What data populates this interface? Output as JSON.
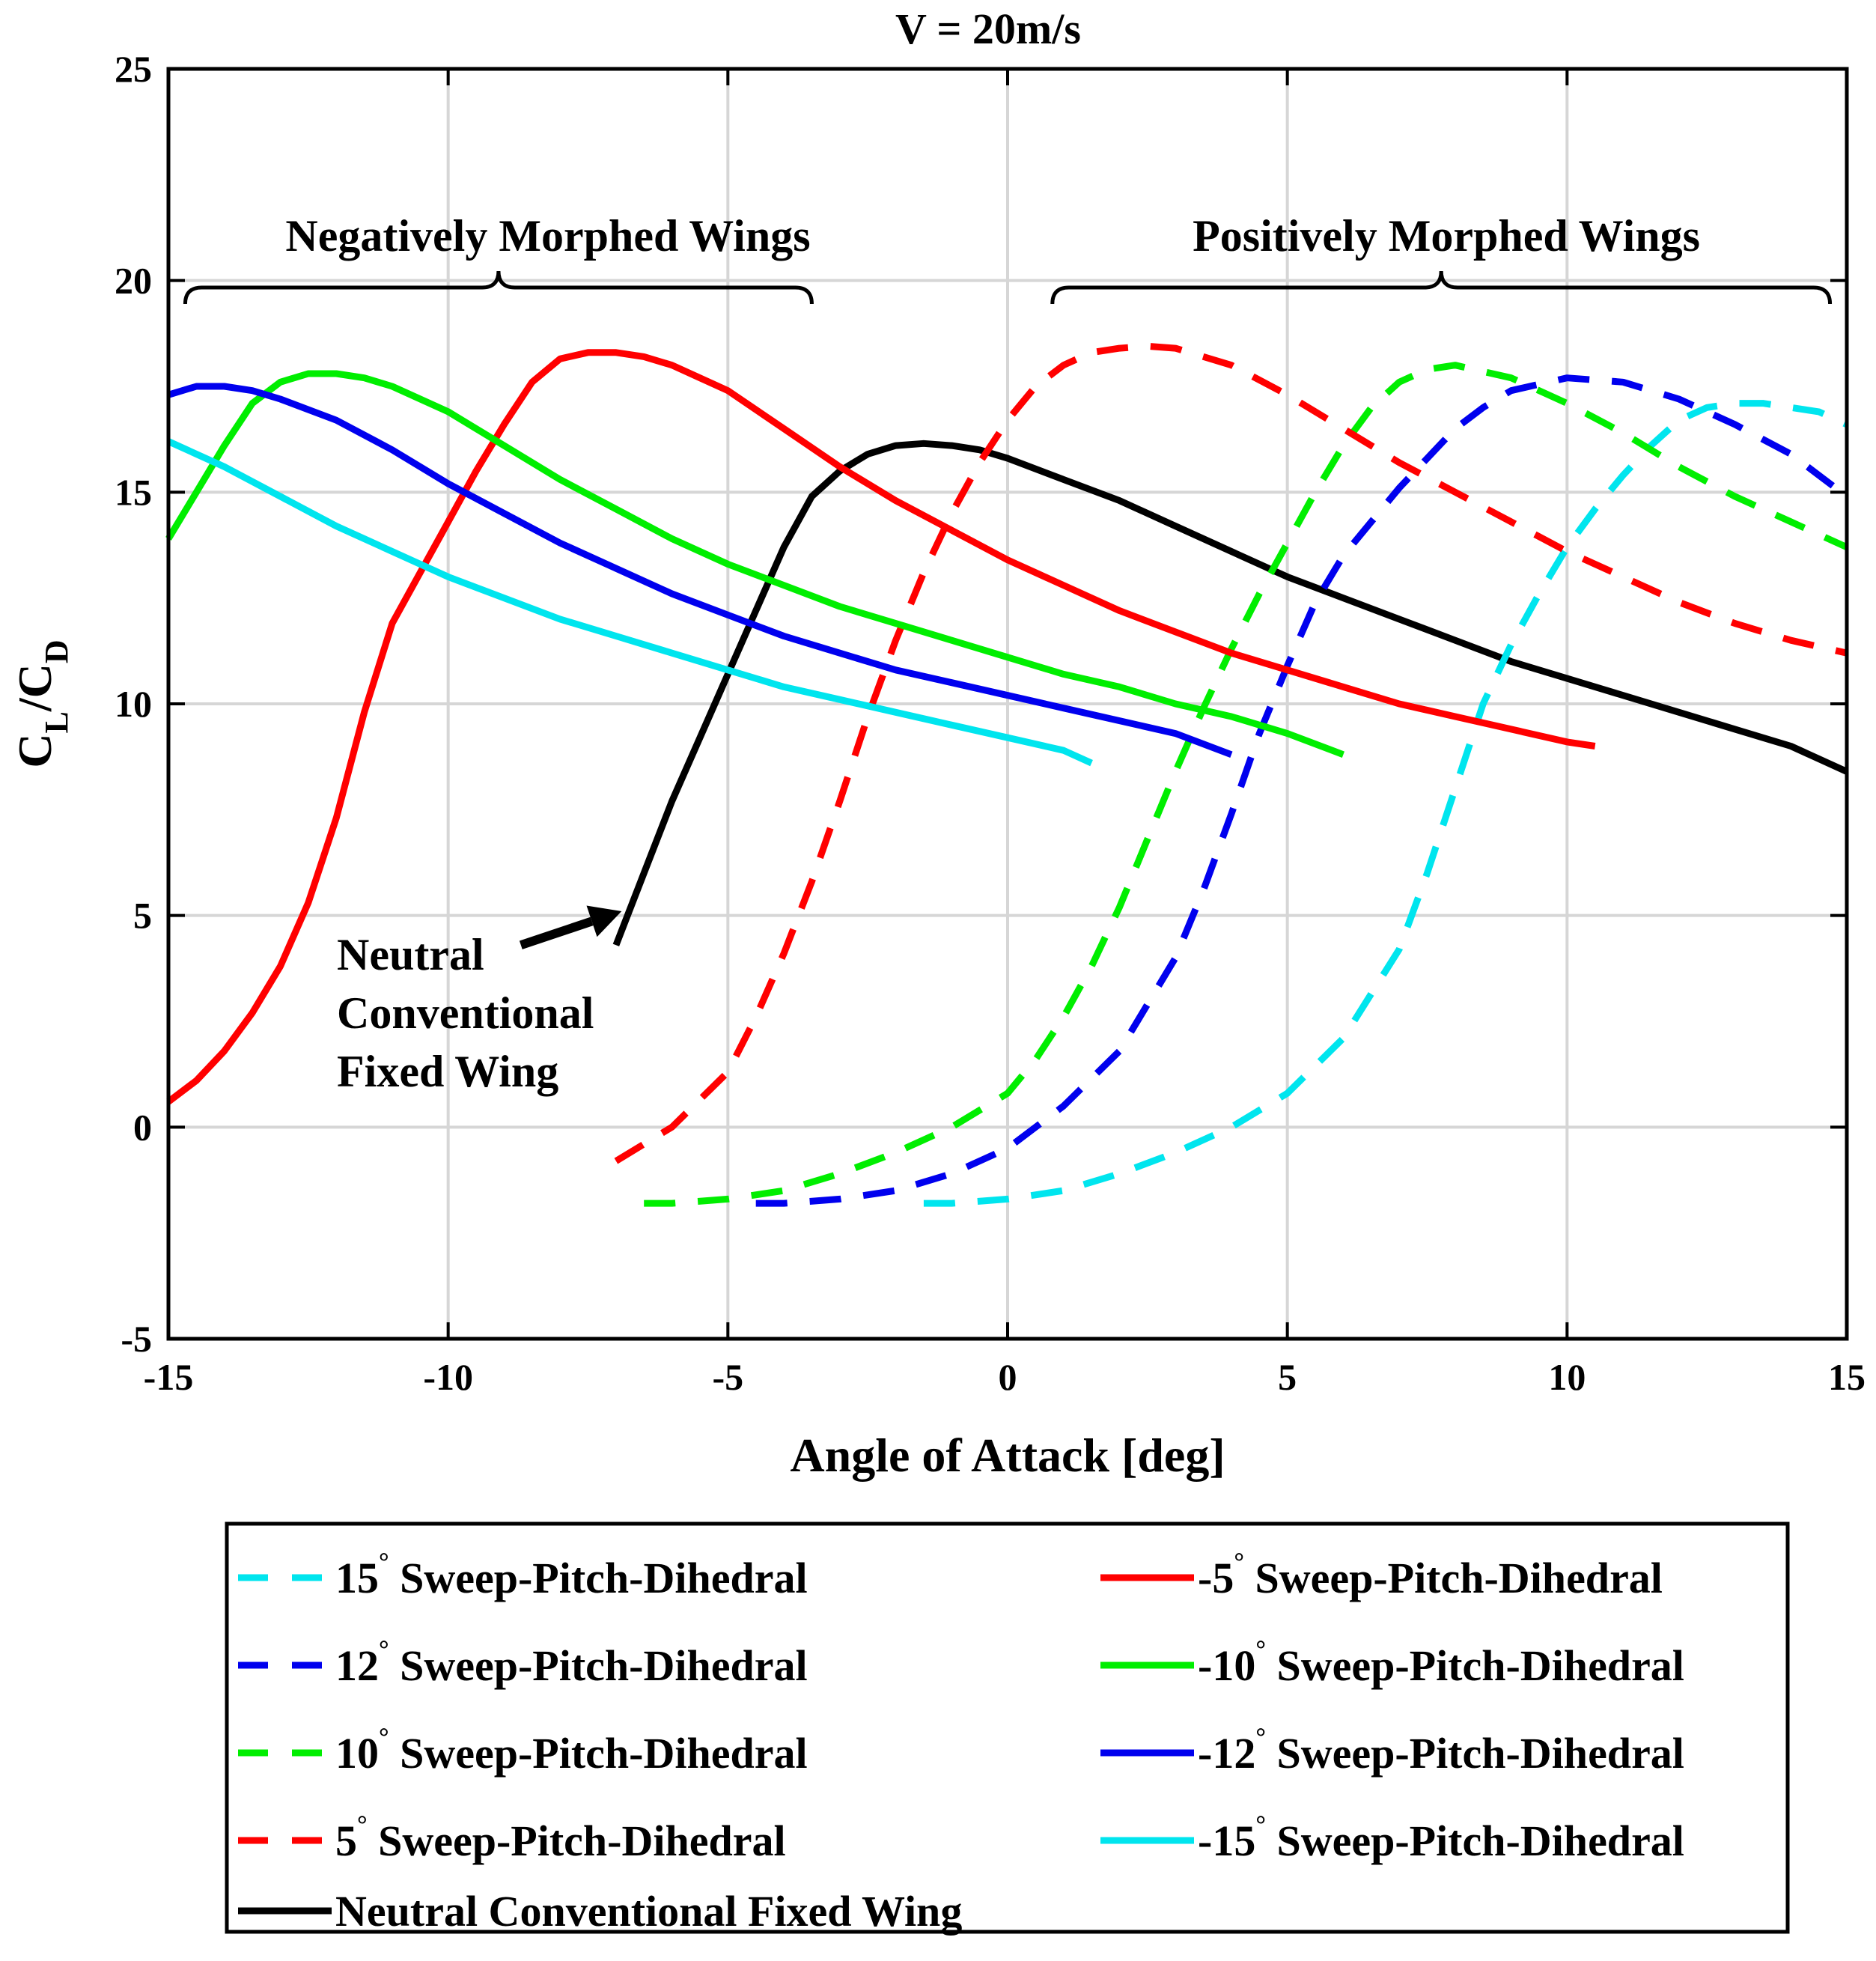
{
  "chart_data": {
    "type": "line",
    "title": "V = 20m/s",
    "xlabel": "Angle of Attack [deg]",
    "ylabel": "C_L/C_D",
    "ylabel_parts": {
      "c1": "C",
      "sub1": "L",
      "slash": "/",
      "c2": "C",
      "sub2": "D"
    },
    "xlim": [
      -15,
      15
    ],
    "ylim": [
      -5,
      25
    ],
    "xticks": [
      -15,
      -10,
      -5,
      0,
      5,
      10,
      15
    ],
    "yticks": [
      -5,
      0,
      5,
      10,
      15,
      20,
      25
    ],
    "xtick_labels": [
      "-15",
      "-10",
      "-5",
      "0",
      "5",
      "10",
      "15"
    ],
    "ytick_labels": [
      "-5",
      "0",
      "5",
      "10",
      "15",
      "20",
      "25"
    ],
    "grid": true,
    "legend_position": "below",
    "annotations": {
      "negative_group": {
        "label": "Negatively Morphed Wings",
        "x_from": -14.7,
        "x_to": -3.5,
        "y": 19.5
      },
      "positive_group": {
        "label": "Positively Morphed Wings",
        "x_from": 0.8,
        "x_to": 14.7,
        "y": 19.5
      },
      "neutral_arrow": {
        "lines": [
          "Neutral",
          "Conventional",
          "Fixed Wing"
        ],
        "arrow_from": [
          -8.7,
          4.3
        ],
        "arrow_to": [
          -6.9,
          5.1
        ]
      }
    },
    "series": [
      {
        "name": "15° Sweep-Pitch-Dihedral",
        "angle": "15",
        "label_rest": " Sweep-Pitch-Dihedral",
        "color": "#00e5ee",
        "dashed": true,
        "x": [
          -1.5,
          -1.0,
          0.0,
          1.0,
          2.0,
          3.0,
          4.0,
          5.0,
          6.0,
          7.0,
          7.5,
          8.0,
          8.5,
          9.0,
          9.5,
          10.0,
          10.5,
          11.0,
          11.5,
          12.0,
          12.5,
          13.0,
          13.5,
          14.0,
          14.5,
          15.0
        ],
        "y": [
          -1.8,
          -1.8,
          -1.7,
          -1.5,
          -1.1,
          -0.6,
          0.0,
          0.8,
          2.1,
          4.2,
          6.0,
          8.0,
          10.0,
          11.4,
          12.6,
          13.7,
          14.6,
          15.4,
          16.1,
          16.7,
          17.0,
          17.1,
          17.1,
          17.0,
          16.9,
          16.6
        ]
      },
      {
        "name": "12° Sweep-Pitch-Dihedral",
        "angle": "12",
        "label_rest": " Sweep-Pitch-Dihedral",
        "color": "#0000ee",
        "dashed": true,
        "x": [
          -4.5,
          -4.0,
          -3.0,
          -2.0,
          -1.0,
          0.0,
          1.0,
          2.0,
          3.0,
          3.5,
          4.0,
          4.5,
          5.0,
          5.5,
          6.0,
          6.5,
          7.0,
          7.5,
          8.0,
          8.5,
          9.0,
          10.0,
          11.0,
          12.0,
          13.0,
          14.0,
          15.0
        ],
        "y": [
          -1.8,
          -1.8,
          -1.7,
          -1.5,
          -1.1,
          -0.5,
          0.5,
          1.8,
          4.0,
          5.6,
          7.4,
          9.3,
          10.9,
          12.4,
          13.5,
          14.3,
          15.1,
          15.8,
          16.5,
          17.0,
          17.4,
          17.7,
          17.6,
          17.2,
          16.6,
          15.9,
          14.9
        ]
      },
      {
        "name": "10° Sweep-Pitch-Dihedral",
        "angle": "10",
        "label_rest": " Sweep-Pitch-Dihedral",
        "color": "#00ee00",
        "dashed": true,
        "x": [
          -6.5,
          -6.0,
          -5.0,
          -4.0,
          -3.0,
          -2.0,
          -1.0,
          0.0,
          0.5,
          1.0,
          1.5,
          2.0,
          2.5,
          3.0,
          3.5,
          4.0,
          4.5,
          5.0,
          5.5,
          6.0,
          6.5,
          7.0,
          7.5,
          8.0,
          9.0,
          10.0,
          11.0,
          12.0,
          13.0,
          14.0,
          15.0
        ],
        "y": [
          -1.8,
          -1.8,
          -1.7,
          -1.5,
          -1.1,
          -0.6,
          0.0,
          0.8,
          1.6,
          2.6,
          3.8,
          5.2,
          6.8,
          8.4,
          9.9,
          11.3,
          12.6,
          13.8,
          15.0,
          16.1,
          17.0,
          17.6,
          17.9,
          18.0,
          17.7,
          17.1,
          16.4,
          15.6,
          14.9,
          14.3,
          13.7
        ]
      },
      {
        "name": "5° Sweep-Pitch-Dihedral",
        "angle": "5",
        "label_rest": " Sweep-Pitch-Dihedral",
        "color": "#ff0000",
        "dashed": true,
        "x": [
          -7.0,
          -6.0,
          -5.0,
          -4.5,
          -4.0,
          -3.5,
          -3.0,
          -2.5,
          -2.0,
          -1.5,
          -1.0,
          -0.5,
          0.0,
          0.5,
          1.0,
          1.5,
          2.0,
          2.5,
          3.0,
          4.0,
          5.0,
          6.0,
          7.0,
          8.0,
          9.0,
          10.0,
          11.0,
          12.0,
          13.0,
          14.0,
          15.0
        ],
        "y": [
          -0.8,
          0.0,
          1.3,
          2.6,
          4.1,
          5.8,
          7.7,
          9.7,
          11.5,
          13.1,
          14.5,
          15.7,
          16.7,
          17.5,
          18.0,
          18.3,
          18.4,
          18.45,
          18.4,
          18.0,
          17.3,
          16.5,
          15.7,
          15.0,
          14.3,
          13.6,
          13.0,
          12.4,
          11.9,
          11.5,
          11.2
        ]
      },
      {
        "name": "-5° Sweep-Pitch-Dihedral",
        "angle": "-5",
        "label_rest": " Sweep-Pitch-Dihedral",
        "color": "#ff0000",
        "dashed": false,
        "x": [
          -15.0,
          -14.5,
          -14.0,
          -13.5,
          -13.0,
          -12.5,
          -12.0,
          -11.5,
          -11.0,
          -10.5,
          -10.0,
          -9.5,
          -9.0,
          -8.5,
          -8.0,
          -7.5,
          -7.0,
          -6.5,
          -6.0,
          -5.0,
          -4.0,
          -3.0,
          -2.0,
          -1.0,
          0.0,
          1.0,
          2.0,
          3.0,
          4.0,
          5.0,
          6.0,
          7.0,
          8.0,
          9.0,
          10.0,
          10.5
        ],
        "y": [
          0.6,
          1.1,
          1.8,
          2.7,
          3.8,
          5.3,
          7.3,
          9.8,
          11.9,
          13.1,
          14.3,
          15.5,
          16.6,
          17.6,
          18.15,
          18.3,
          18.3,
          18.2,
          18.0,
          17.4,
          16.5,
          15.6,
          14.8,
          14.1,
          13.4,
          12.8,
          12.2,
          11.7,
          11.2,
          10.8,
          10.4,
          10.0,
          9.7,
          9.4,
          9.1,
          9.0
        ]
      },
      {
        "name": "-10° Sweep-Pitch-Dihedral",
        "angle": "-10",
        "label_rest": " Sweep-Pitch-Dihedral",
        "color": "#00ee00",
        "dashed": false,
        "x": [
          -15.0,
          -14.5,
          -14.0,
          -13.5,
          -13.0,
          -12.5,
          -12.0,
          -11.5,
          -11.0,
          -10.0,
          -9.0,
          -8.0,
          -7.0,
          -6.0,
          -5.0,
          -4.0,
          -3.0,
          -2.0,
          -1.0,
          0.0,
          1.0,
          2.0,
          3.0,
          4.0,
          5.0,
          6.0
        ],
        "y": [
          13.9,
          15.0,
          16.1,
          17.1,
          17.6,
          17.8,
          17.8,
          17.7,
          17.5,
          16.9,
          16.1,
          15.3,
          14.6,
          13.9,
          13.3,
          12.8,
          12.3,
          11.9,
          11.5,
          11.1,
          10.7,
          10.4,
          10.0,
          9.7,
          9.3,
          8.8
        ]
      },
      {
        "name": "-12° Sweep-Pitch-Dihedral",
        "angle": "-12",
        "label_rest": " Sweep-Pitch-Dihedral",
        "color": "#0000ee",
        "dashed": false,
        "x": [
          -15.0,
          -14.5,
          -14.0,
          -13.5,
          -13.0,
          -12.0,
          -11.0,
          -10.0,
          -9.0,
          -8.0,
          -7.0,
          -6.0,
          -5.0,
          -4.0,
          -3.0,
          -2.0,
          -1.0,
          0.0,
          1.0,
          2.0,
          3.0,
          4.0
        ],
        "y": [
          17.3,
          17.5,
          17.5,
          17.4,
          17.2,
          16.7,
          16.0,
          15.2,
          14.5,
          13.8,
          13.2,
          12.6,
          12.1,
          11.6,
          11.2,
          10.8,
          10.5,
          10.2,
          9.9,
          9.6,
          9.3,
          8.8
        ]
      },
      {
        "name": "-15° Sweep-Pitch-Dihedral",
        "angle": "-15",
        "label_rest": " Sweep-Pitch-Dihedral",
        "color": "#00e5ee",
        "dashed": false,
        "x": [
          -15.0,
          -14.0,
          -13.0,
          -12.0,
          -11.0,
          -10.0,
          -9.0,
          -8.0,
          -7.0,
          -6.0,
          -5.0,
          -4.0,
          -3.0,
          -2.0,
          -1.0,
          0.0,
          1.0,
          1.5
        ],
        "y": [
          16.2,
          15.6,
          14.9,
          14.2,
          13.6,
          13.0,
          12.5,
          12.0,
          11.6,
          11.2,
          10.8,
          10.4,
          10.1,
          9.8,
          9.5,
          9.2,
          8.9,
          8.6
        ]
      },
      {
        "name": "Neutral Conventional Fixed Wing",
        "angle": "",
        "label_rest": "Neutral Conventional Fixed Wing",
        "color": "#000000",
        "dashed": false,
        "x": [
          -7.0,
          -6.5,
          -6.0,
          -5.5,
          -5.0,
          -4.5,
          -4.0,
          -3.5,
          -3.0,
          -2.5,
          -2.0,
          -1.5,
          -1.0,
          -0.5,
          0.0,
          1.0,
          2.0,
          3.0,
          4.0,
          5.0,
          6.0,
          7.0,
          8.0,
          9.0,
          10.0,
          11.0,
          12.0,
          13.0,
          14.0,
          15.0
        ],
        "y": [
          4.3,
          6.0,
          7.7,
          9.2,
          10.7,
          12.2,
          13.7,
          14.9,
          15.5,
          15.9,
          16.1,
          16.15,
          16.1,
          16.0,
          15.8,
          15.3,
          14.8,
          14.2,
          13.6,
          13.0,
          12.5,
          12.0,
          11.5,
          11.0,
          10.6,
          10.2,
          9.8,
          9.4,
          9.0,
          8.4
        ]
      }
    ],
    "legend_order": [
      0,
      4,
      1,
      5,
      2,
      6,
      3,
      7,
      8
    ]
  }
}
